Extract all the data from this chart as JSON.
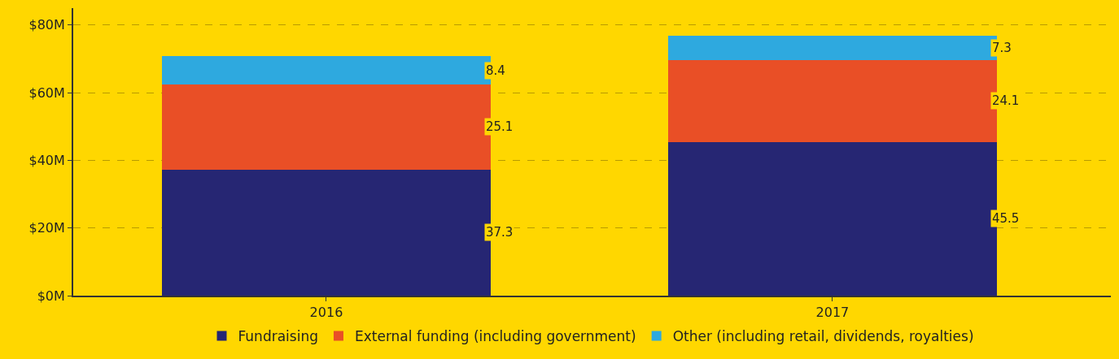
{
  "chart_data": {
    "type": "bar",
    "stacked": true,
    "categories": [
      "2016",
      "2017"
    ],
    "series": [
      {
        "name": "Fundraising",
        "color": "#262673",
        "values": [
          37.3,
          45.5
        ],
        "value_labels": [
          "37.3",
          "45.5"
        ]
      },
      {
        "name": "External funding (including government)",
        "color": "#e94f26",
        "values": [
          25.1,
          24.1
        ],
        "value_labels": [
          "25.1",
          "24.1"
        ]
      },
      {
        "name": "Other (including retail, dividends, royalties)",
        "color": "#2ea9df",
        "values": [
          8.4,
          7.3
        ],
        "value_labels": [
          "8.4",
          "7.3"
        ]
      }
    ],
    "ylim": [
      0,
      85
    ],
    "yticks": [
      {
        "value": 0,
        "label": "$0M"
      },
      {
        "value": 20,
        "label": "$20M"
      },
      {
        "value": 40,
        "label": "$40M"
      },
      {
        "value": 60,
        "label": "$60M"
      },
      {
        "value": 80,
        "label": "$80M"
      }
    ],
    "grid": "y",
    "legend": "bottom"
  }
}
